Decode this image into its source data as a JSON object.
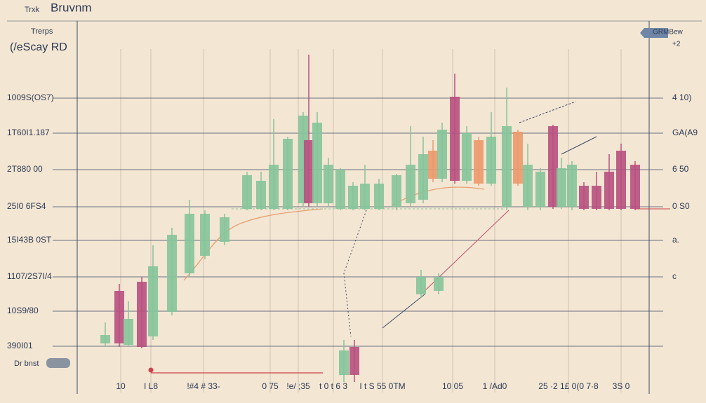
{
  "chart_data": {
    "type": "candlestick",
    "title": "Bruvnm",
    "annotations": [
      "Trxk",
      "Trerps",
      "(/eScay RD",
      "GRMBew",
      "+2",
      "Dr bnst"
    ],
    "xlim": [
      0,
      815
    ],
    "ylim": [
      0,
      530
    ],
    "y2lim": [
      0,
      530
    ],
    "xticks": [
      {
        "value": 62,
        "label": "10"
      },
      {
        "value": 105,
        "label": "I L8"
      },
      {
        "value": 180,
        "label": "!#4 # 33-"
      },
      {
        "value": 275,
        "label": "0 75"
      },
      {
        "value": 315,
        "label": "!e/ ;35"
      },
      {
        "value": 365,
        "label": "t 0 t 6 3"
      },
      {
        "value": 435,
        "label": "I t S 55 0TM"
      },
      {
        "value": 535,
        "label": "10 05"
      },
      {
        "value": 595,
        "label": "1 /Ad0"
      },
      {
        "value": 700,
        "label": "25 ·2 1£ 0(0 7·8"
      },
      {
        "value": 775,
        "label": "3S 0"
      }
    ],
    "yticks": [
      {
        "value": 420,
        "label": "1009S(OS7)"
      },
      {
        "value": 370,
        "label": "1T60I1.187"
      },
      {
        "value": 318,
        "label": "2T880 00"
      },
      {
        "value": 265,
        "label": "25I0 6FS4"
      },
      {
        "value": 217,
        "label": "15I43B 0ST"
      },
      {
        "value": 165,
        "label": "1107/2S7I/4"
      },
      {
        "value": 116,
        "label": "10S9/80"
      },
      {
        "value": 66,
        "label": "390I01"
      }
    ],
    "y2ticks": [
      {
        "value": 420,
        "label": "4 10)"
      },
      {
        "value": 370,
        "label": "GA(A9"
      },
      {
        "value": 318,
        "label": "6 50"
      },
      {
        "value": 265,
        "label": "0 S0"
      },
      {
        "value": 217,
        "label": "a."
      },
      {
        "value": 165,
        "label": "c"
      }
    ],
    "grid": true,
    "x": [
      40,
      60,
      73,
      92,
      108,
      135,
      160,
      182,
      210,
      242,
      262,
      280,
      300,
      322,
      330,
      342,
      358,
      375,
      393,
      410,
      430,
      455,
      475,
      493,
      507,
      520,
      538,
      555,
      572,
      590,
      612,
      628,
      642,
      660,
      678,
      690,
      705,
      722,
      740,
      758,
      775,
      795,
      490,
      515,
      380,
      395
    ],
    "open": [
      70,
      145,
      68,
      158,
      80,
      115,
      170,
      195,
      215,
      262,
      262,
      262,
      262,
      270,
      360,
      270,
      270,
      262,
      262,
      262,
      262,
      265,
      270,
      275,
      345,
      305,
      422,
      302,
      360,
      298,
      265,
      372,
      265,
      265,
      380,
      265,
      265,
      295,
      295,
      315,
      345,
      325,
      140,
      145,
      25,
      65
    ],
    "high": [
      100,
      155,
      130,
      165,
      210,
      235,
      275,
      260,
      255,
      315,
      315,
      390,
      365,
      400,
      482,
      400,
      335,
      320,
      300,
      325,
      305,
      312,
      380,
      365,
      360,
      385,
      455,
      380,
      365,
      400,
      435,
      375,
      355,
      320,
      382,
      335,
      330,
      300,
      315,
      340,
      355,
      330,
      175,
      170,
      75,
      75
    ],
    "low": [
      65,
      65,
      65,
      63,
      75,
      110,
      165,
      190,
      210,
      260,
      260,
      260,
      260,
      265,
      265,
      265,
      265,
      260,
      260,
      260,
      260,
      260,
      265,
      270,
      300,
      300,
      298,
      298,
      295,
      295,
      260,
      295,
      260,
      260,
      262,
      262,
      260,
      260,
      260,
      260,
      260,
      260,
      135,
      140,
      15,
      15
    ],
    "close": [
      82,
      70,
      105,
      65,
      180,
      225,
      255,
      255,
      250,
      310,
      302,
      325,
      362,
      395,
      270,
      385,
      325,
      318,
      295,
      298,
      298,
      310,
      325,
      340,
      305,
      375,
      302,
      370,
      298,
      365,
      380,
      298,
      325,
      315,
      265,
      320,
      325,
      262,
      262,
      262,
      262,
      262,
      165,
      165,
      60,
      25
    ],
    "colors": [
      "#86c49a",
      "#b8507f",
      "#86c49a",
      "#b8507f",
      "#86c49a",
      "#86c49a",
      "#86c49a",
      "#86c49a",
      "#86c49a",
      "#86c49a",
      "#86c49a",
      "#86c49a",
      "#86c49a",
      "#86c49a",
      "#b8507f",
      "#86c49a",
      "#86c49a",
      "#86c49a",
      "#86c49a",
      "#86c49a",
      "#86c49a",
      "#86c49a",
      "#86c49a",
      "#86c49a",
      "#eb9a6c",
      "#86c49a",
      "#b8507f",
      "#86c49a",
      "#eb9a6c",
      "#86c49a",
      "#86c49a",
      "#eb9a6c",
      "#86c49a",
      "#86c49a",
      "#b8507f",
      "#86c49a",
      "#86c49a",
      "#b8507f",
      "#b8507f",
      "#b8507f",
      "#b8507f",
      "#b8507f",
      "#86c49a",
      "#86c49a",
      "#86c49a",
      "#b8507f"
    ]
  }
}
